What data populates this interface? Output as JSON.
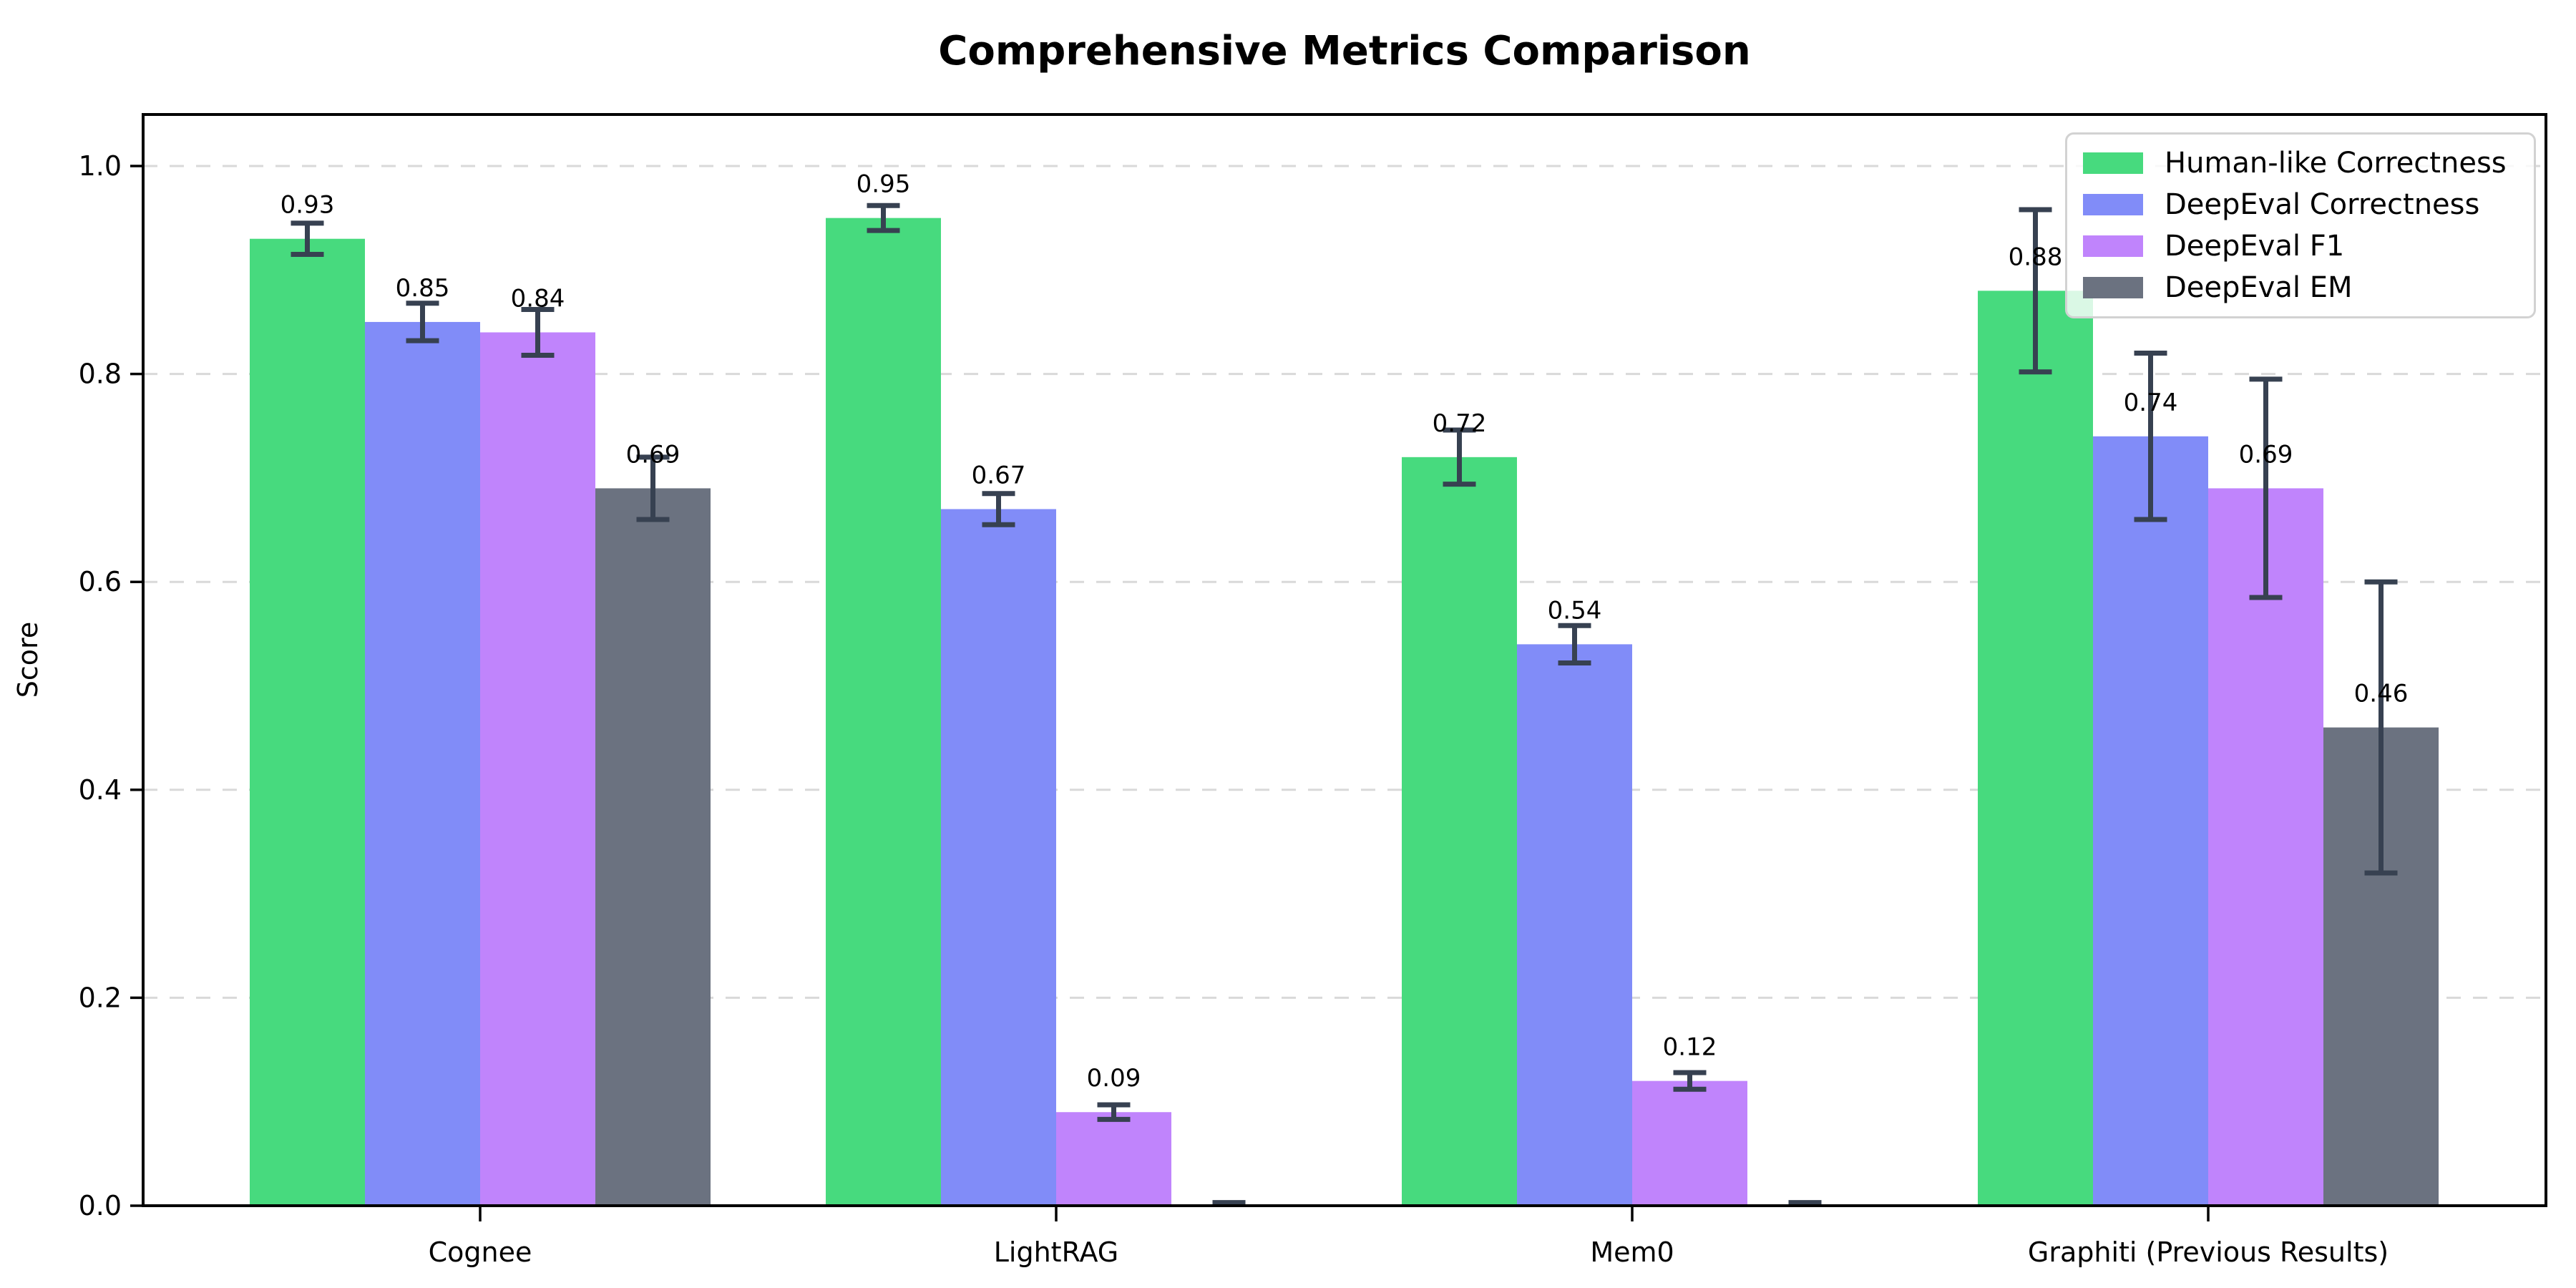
{
  "figure": {
    "background": "#ffffff"
  },
  "chart_data": {
    "type": "bar",
    "title": "Comprehensive Metrics Comparison",
    "xlabel": "",
    "ylabel": "Score",
    "categories": [
      "Cognee",
      "LightRAG",
      "Mem0",
      "Graphiti (Previous Results)"
    ],
    "y_tick_labels": [
      "0.0",
      "0.2",
      "0.4",
      "0.6",
      "0.8",
      "1.0"
    ],
    "y_ticks": [
      0.0,
      0.2,
      0.4,
      0.6,
      0.8,
      1.0
    ],
    "ylim": [
      0,
      1.05
    ],
    "grid": {
      "axis": "y",
      "style": "dashed",
      "color": "#d9d9d9"
    },
    "error_bar_color": "#374151",
    "legend": {
      "position": "upper right",
      "entries": [
        "Human-like Correctness",
        "DeepEval Correctness",
        "DeepEval F1",
        "DeepEval EM"
      ]
    },
    "series": [
      {
        "name": "Human-like Correctness",
        "color": "#47da7e",
        "values": [
          0.93,
          0.95,
          0.72,
          0.88
        ],
        "errors": [
          0.015,
          0.012,
          0.026,
          0.078
        ],
        "value_labels": [
          "0.93",
          "0.95",
          "0.72",
          "0.88"
        ]
      },
      {
        "name": "DeepEval Correctness",
        "color": "#818cf8",
        "values": [
          0.85,
          0.67,
          0.54,
          0.74
        ],
        "errors": [
          0.018,
          0.015,
          0.018,
          0.08
        ],
        "value_labels": [
          "0.85",
          "0.67",
          "0.54",
          "0.74"
        ]
      },
      {
        "name": "DeepEval F1",
        "color": "#c084fc",
        "values": [
          0.84,
          0.09,
          0.12,
          0.69
        ],
        "errors": [
          0.022,
          0.007,
          0.008,
          0.105
        ],
        "value_labels": [
          "0.84",
          "0.09",
          "0.12",
          "0.69"
        ]
      },
      {
        "name": "DeepEval EM",
        "color": "#6b7280",
        "values": [
          0.69,
          0.0,
          0.0,
          0.46
        ],
        "errors": [
          0.03,
          0.003,
          0.003,
          0.14
        ],
        "value_labels": [
          "0.69",
          "",
          "",
          "0.46"
        ]
      }
    ]
  }
}
